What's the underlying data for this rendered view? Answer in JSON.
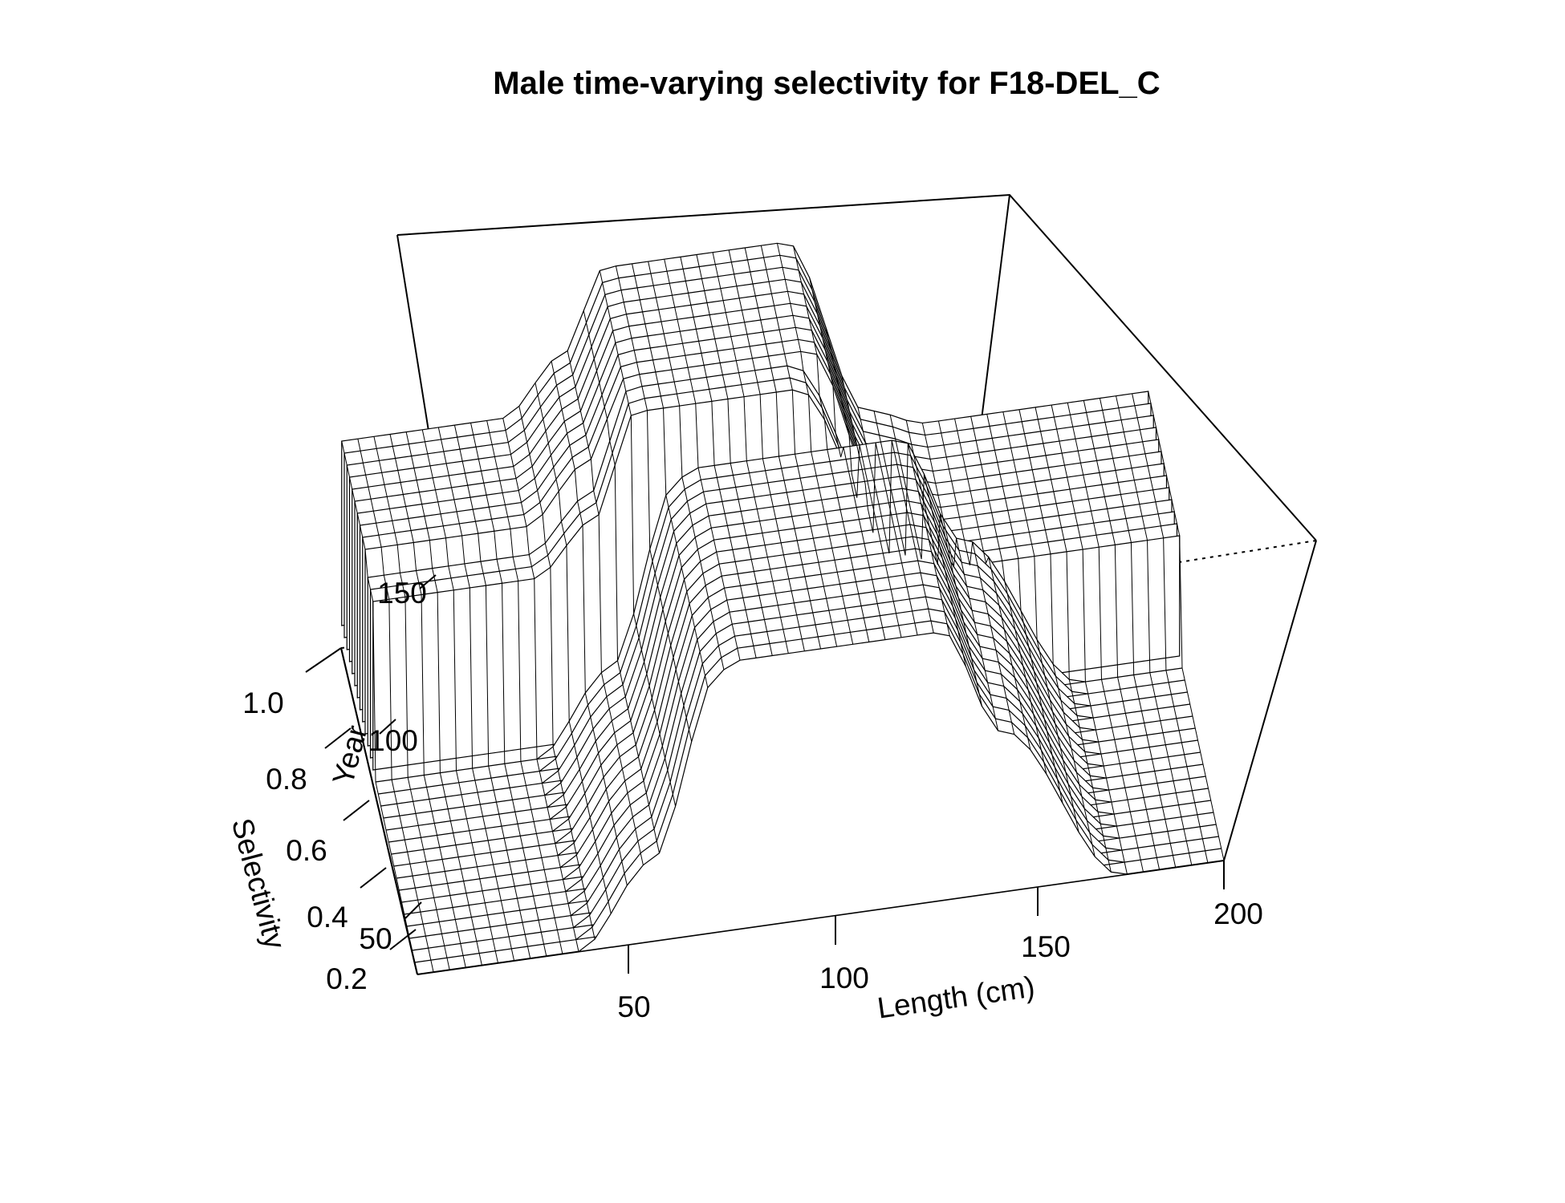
{
  "chart_data": {
    "type": "surface",
    "title": "Male time-varying selectivity for F18-DEL_C",
    "xlabel": "Length (cm)",
    "ylabel": "Year",
    "zlabel": "Selectivity",
    "x_ticks": [
      "50",
      "100",
      "150",
      "200"
    ],
    "y_ticks": [
      "50",
      "100",
      "150"
    ],
    "z_ticks": [
      "0.2",
      "0.4",
      "0.6",
      "0.8",
      "1.0"
    ],
    "xlim": [
      0,
      200
    ],
    "ylim": [
      30,
      175
    ],
    "zlim": [
      0.2,
      1.0
    ],
    "mesh_color": "#000000",
    "surface_fill": "#ffffff",
    "year_periods": [
      {
        "years": [
          30,
          110
        ],
        "selectivity_at_x": [
          [
            0,
            0.2
          ],
          [
            40,
            0.2
          ],
          [
            58,
            0.4
          ],
          [
            75,
            0.85
          ],
          [
            80,
            0.87
          ],
          [
            130,
            0.87
          ],
          [
            145,
            0.6
          ],
          [
            175,
            0.2
          ],
          [
            200,
            0.2
          ]
        ]
      },
      {
        "years": [
          110,
          125
        ],
        "selectivity_at_x": [
          [
            0,
            0.62
          ],
          [
            40,
            0.62
          ],
          [
            55,
            0.75
          ],
          [
            65,
            1.0
          ],
          [
            105,
            1.0
          ],
          [
            130,
            0.55
          ],
          [
            145,
            0.5
          ],
          [
            160,
            0.5
          ]
        ]
      },
      {
        "years": [
          125,
          175
        ],
        "selectivity_at_x": [
          [
            0,
            0.66
          ],
          [
            40,
            0.66
          ],
          [
            55,
            0.8
          ],
          [
            65,
            1.0
          ],
          [
            110,
            1.0
          ],
          [
            130,
            0.55
          ],
          [
            145,
            0.5
          ],
          [
            160,
            0.5
          ]
        ]
      }
    ]
  }
}
